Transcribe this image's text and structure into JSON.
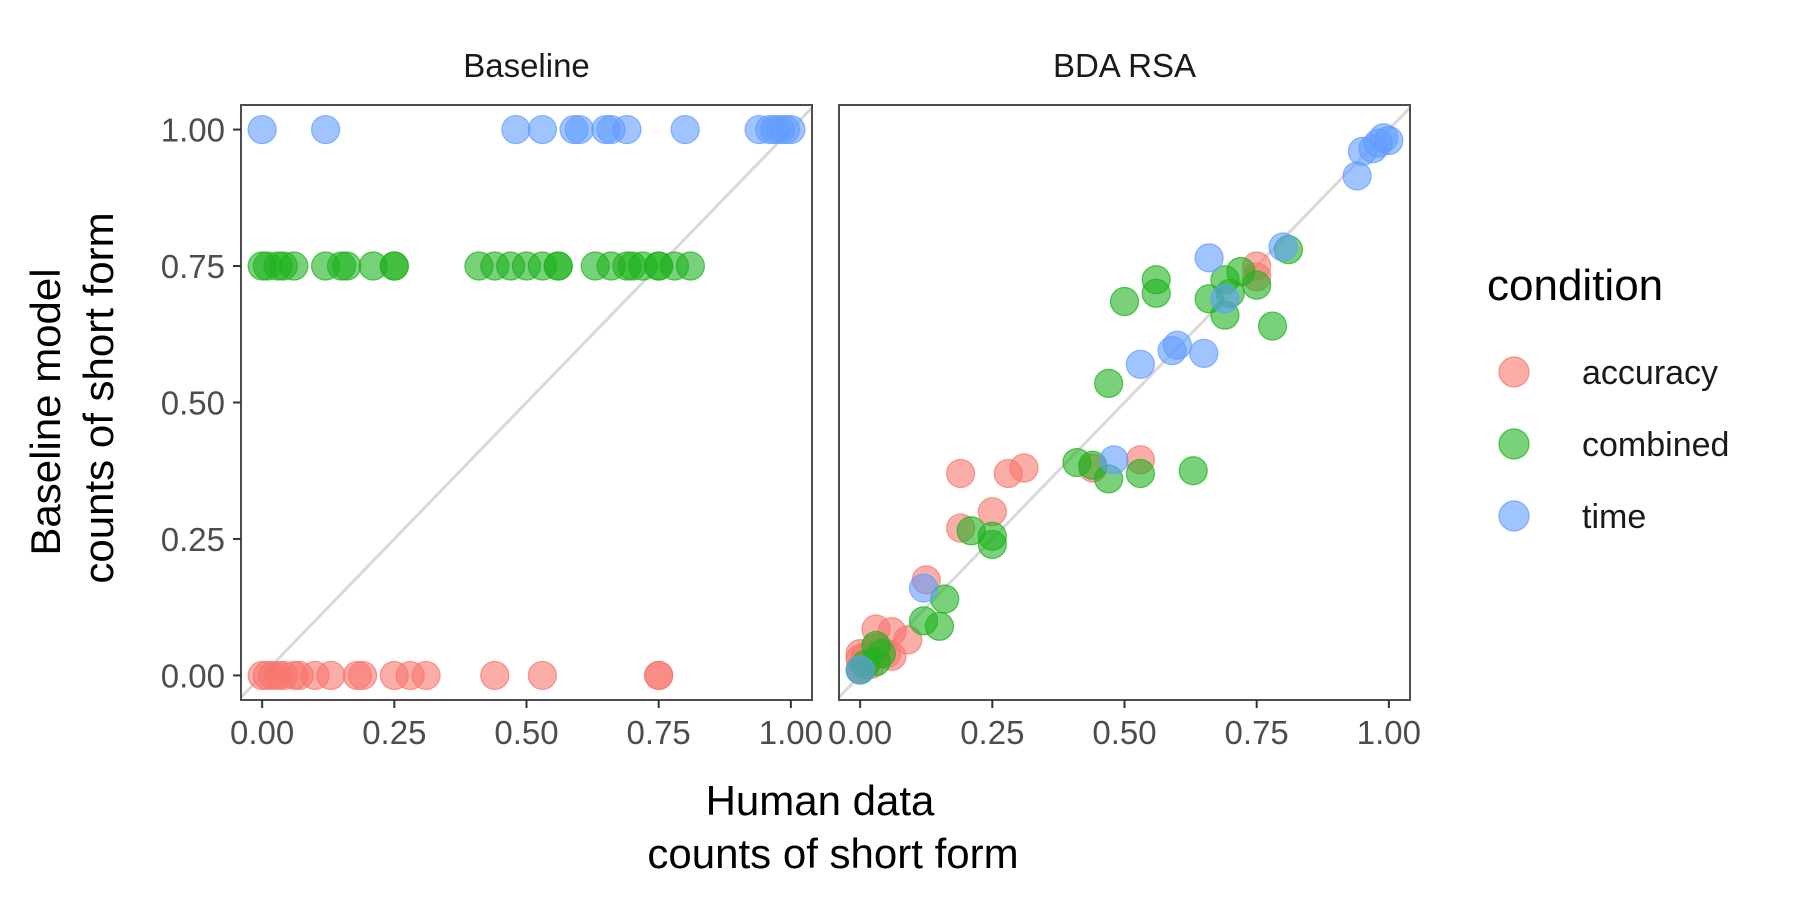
{
  "chart_data": {
    "type": "scatter",
    "xlabel": [
      "Human data",
      "counts of short form"
    ],
    "ylabel": [
      "Baseline model",
      "counts of short form"
    ],
    "xlim": [
      -0.04,
      1.04
    ],
    "ylim": [
      -0.045,
      1.045
    ],
    "x_ticks": [
      0.0,
      0.25,
      0.5,
      0.75,
      1.0
    ],
    "y_ticks": [
      0.0,
      0.25,
      0.5,
      0.75,
      1.0
    ],
    "x_tick_labels": [
      "0.00",
      "0.25",
      "0.50",
      "0.75",
      "1.00"
    ],
    "y_tick_labels": [
      "0.00",
      "0.25",
      "0.50",
      "0.75",
      "1.00"
    ],
    "reference_line": "y = x",
    "grid": false,
    "legend": {
      "title": "condition",
      "placement": "right",
      "entries": [
        {
          "name": "accuracy",
          "color": "#F8766D"
        },
        {
          "name": "combined",
          "color": "#1FB31F"
        },
        {
          "name": "time",
          "color": "#619CFF"
        }
      ]
    },
    "panels": [
      {
        "title": "Baseline",
        "series": [
          {
            "name": "accuracy",
            "points": [
              [
                0.0,
                0.0
              ],
              [
                0.01,
                0.0
              ],
              [
                0.02,
                0.0
              ],
              [
                0.03,
                0.0
              ],
              [
                0.04,
                0.0
              ],
              [
                0.06,
                0.0
              ],
              [
                0.07,
                0.0
              ],
              [
                0.1,
                0.0
              ],
              [
                0.13,
                0.0
              ],
              [
                0.18,
                0.0
              ],
              [
                0.19,
                0.0
              ],
              [
                0.25,
                0.0
              ],
              [
                0.28,
                0.0
              ],
              [
                0.31,
                0.0
              ],
              [
                0.44,
                0.0
              ],
              [
                0.53,
                0.0
              ],
              [
                0.75,
                0.0
              ],
              [
                0.75,
                0.0
              ]
            ]
          },
          {
            "name": "combined",
            "points": [
              [
                0.0,
                0.75
              ],
              [
                0.01,
                0.75
              ],
              [
                0.03,
                0.75
              ],
              [
                0.04,
                0.75
              ],
              [
                0.06,
                0.75
              ],
              [
                0.12,
                0.75
              ],
              [
                0.15,
                0.75
              ],
              [
                0.16,
                0.75
              ],
              [
                0.21,
                0.75
              ],
              [
                0.25,
                0.75
              ],
              [
                0.25,
                0.75
              ],
              [
                0.41,
                0.75
              ],
              [
                0.44,
                0.75
              ],
              [
                0.47,
                0.75
              ],
              [
                0.5,
                0.75
              ],
              [
                0.53,
                0.75
              ],
              [
                0.56,
                0.75
              ],
              [
                0.56,
                0.75
              ],
              [
                0.63,
                0.75
              ],
              [
                0.66,
                0.75
              ],
              [
                0.69,
                0.75
              ],
              [
                0.7,
                0.75
              ],
              [
                0.72,
                0.75
              ],
              [
                0.75,
                0.75
              ],
              [
                0.75,
                0.75
              ],
              [
                0.78,
                0.75
              ],
              [
                0.81,
                0.75
              ]
            ]
          },
          {
            "name": "time",
            "points": [
              [
                0.0,
                1.0
              ],
              [
                0.12,
                1.0
              ],
              [
                0.48,
                1.0
              ],
              [
                0.53,
                1.0
              ],
              [
                0.59,
                1.0
              ],
              [
                0.6,
                1.0
              ],
              [
                0.65,
                1.0
              ],
              [
                0.66,
                1.0
              ],
              [
                0.69,
                1.0
              ],
              [
                0.8,
                1.0
              ],
              [
                0.94,
                1.0
              ],
              [
                0.96,
                1.0
              ],
              [
                0.97,
                1.0
              ],
              [
                0.98,
                1.0
              ],
              [
                0.99,
                1.0
              ],
              [
                1.0,
                1.0
              ]
            ]
          }
        ]
      },
      {
        "title": "BDA RSA",
        "series": [
          {
            "name": "accuracy",
            "points": [
              [
                0.0,
                0.01
              ],
              [
                0.0,
                0.03
              ],
              [
                0.0,
                0.04
              ],
              [
                0.01,
                0.02
              ],
              [
                0.01,
                0.035
              ],
              [
                0.02,
                0.02
              ],
              [
                0.03,
                0.05
              ],
              [
                0.03,
                0.085
              ],
              [
                0.05,
                0.04
              ],
              [
                0.06,
                0.08
              ],
              [
                0.06,
                0.035
              ],
              [
                0.09,
                0.065
              ],
              [
                0.125,
                0.175
              ],
              [
                0.19,
                0.27
              ],
              [
                0.19,
                0.37
              ],
              [
                0.25,
                0.3
              ],
              [
                0.28,
                0.37
              ],
              [
                0.31,
                0.38
              ],
              [
                0.44,
                0.38
              ],
              [
                0.53,
                0.395
              ],
              [
                0.75,
                0.73
              ],
              [
                0.75,
                0.75
              ]
            ]
          },
          {
            "name": "combined",
            "points": [
              [
                0.0,
                0.01
              ],
              [
                0.01,
                0.02
              ],
              [
                0.03,
                0.025
              ],
              [
                0.04,
                0.04
              ],
              [
                0.03,
                0.055
              ],
              [
                0.12,
                0.1
              ],
              [
                0.15,
                0.09
              ],
              [
                0.16,
                0.14
              ],
              [
                0.21,
                0.265
              ],
              [
                0.25,
                0.24
              ],
              [
                0.25,
                0.255
              ],
              [
                0.41,
                0.39
              ],
              [
                0.44,
                0.385
              ],
              [
                0.47,
                0.36
              ],
              [
                0.47,
                0.535
              ],
              [
                0.5,
                0.685
              ],
              [
                0.53,
                0.37
              ],
              [
                0.56,
                0.7
              ],
              [
                0.56,
                0.725
              ],
              [
                0.63,
                0.375
              ],
              [
                0.66,
                0.69
              ],
              [
                0.69,
                0.66
              ],
              [
                0.69,
                0.725
              ],
              [
                0.7,
                0.7
              ],
              [
                0.72,
                0.74
              ],
              [
                0.75,
                0.715
              ],
              [
                0.78,
                0.64
              ],
              [
                0.81,
                0.78
              ]
            ]
          },
          {
            "name": "time",
            "points": [
              [
                0.0,
                0.01
              ],
              [
                0.12,
                0.16
              ],
              [
                0.48,
                0.395
              ],
              [
                0.53,
                0.57
              ],
              [
                0.59,
                0.595
              ],
              [
                0.6,
                0.605
              ],
              [
                0.65,
                0.59
              ],
              [
                0.66,
                0.765
              ],
              [
                0.69,
                0.69
              ],
              [
                0.8,
                0.785
              ],
              [
                0.94,
                0.915
              ],
              [
                0.95,
                0.96
              ],
              [
                0.97,
                0.965
              ],
              [
                0.98,
                0.975
              ],
              [
                0.99,
                0.985
              ],
              [
                1.0,
                0.98
              ]
            ]
          }
        ]
      }
    ]
  }
}
